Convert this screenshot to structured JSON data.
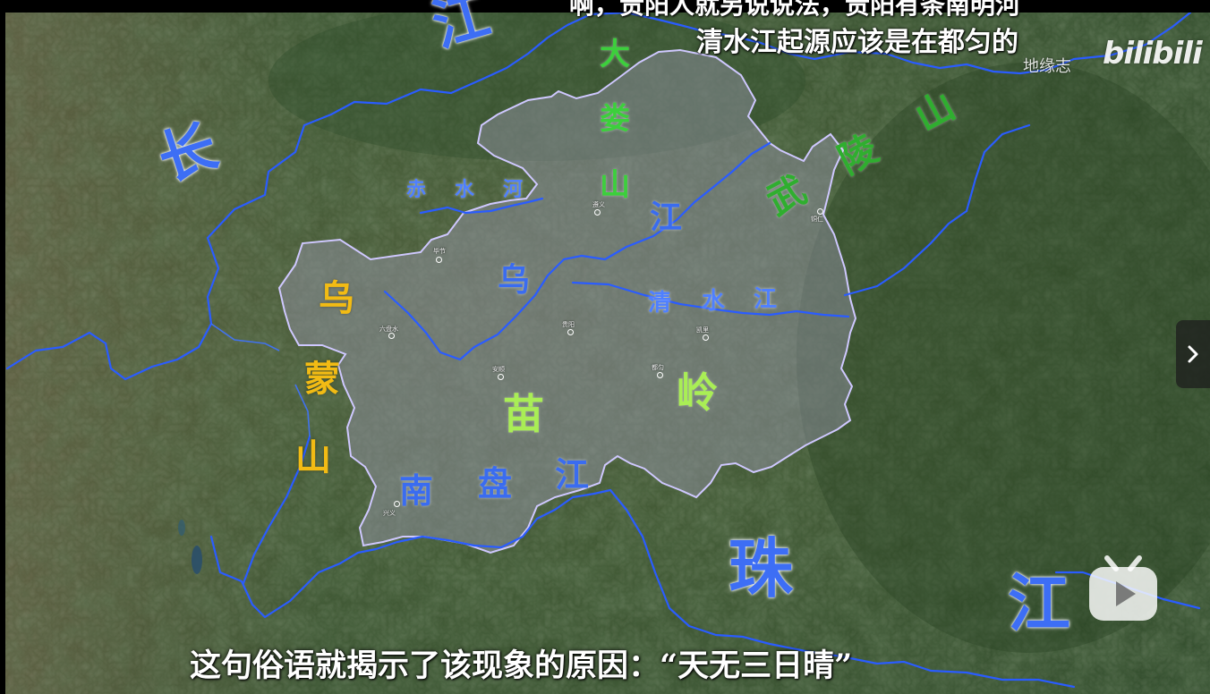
{
  "subtitles": {
    "top_line1": "啊，贵阳人就另说说法，贵阳有条南明河",
    "top_line2": "清水江起源应该是在都匀的",
    "bottom": "这句俗语就揭示了该现象的原因：“天无三日晴”"
  },
  "watermark": {
    "channel": "地缘志",
    "logo": "bilibili"
  },
  "labels": {
    "chang": "长",
    "jiang_top": "江",
    "zhu": "珠",
    "jiang_br": "江",
    "chishui": [
      "赤",
      "水",
      "河"
    ],
    "wujiang": [
      "乌",
      "江"
    ],
    "qingshui": [
      "清",
      "水",
      "江"
    ],
    "nanpan": [
      "南",
      "盘",
      "江"
    ],
    "dalou": [
      "大",
      "娄",
      "山"
    ],
    "wuling": [
      "武",
      "陵",
      "山"
    ],
    "miaoling": [
      "苗",
      "岭"
    ],
    "wumeng": [
      "乌",
      "蒙",
      "山"
    ]
  },
  "cities": {
    "zunyi": "遵义",
    "tongren": "铜仁",
    "bijie": "毕节",
    "liupanshui": "六盘水",
    "guiyang": "贵阳",
    "kaili": "凯里",
    "anshun": "安顺",
    "duyun": "都匀",
    "xingyi": "兴义"
  },
  "colors": {
    "river_blue": "#3a6cf0",
    "mountain_green": "#3ccf3c",
    "miaoling_green": "#a9ee55",
    "wumeng_yellow": "#f2bb14",
    "region_fill": "#8e8fa2",
    "region_border": "#c9c2ff"
  },
  "icons": {
    "next": "chevron-right-icon",
    "tv": "bilibili-tv-play-icon"
  }
}
